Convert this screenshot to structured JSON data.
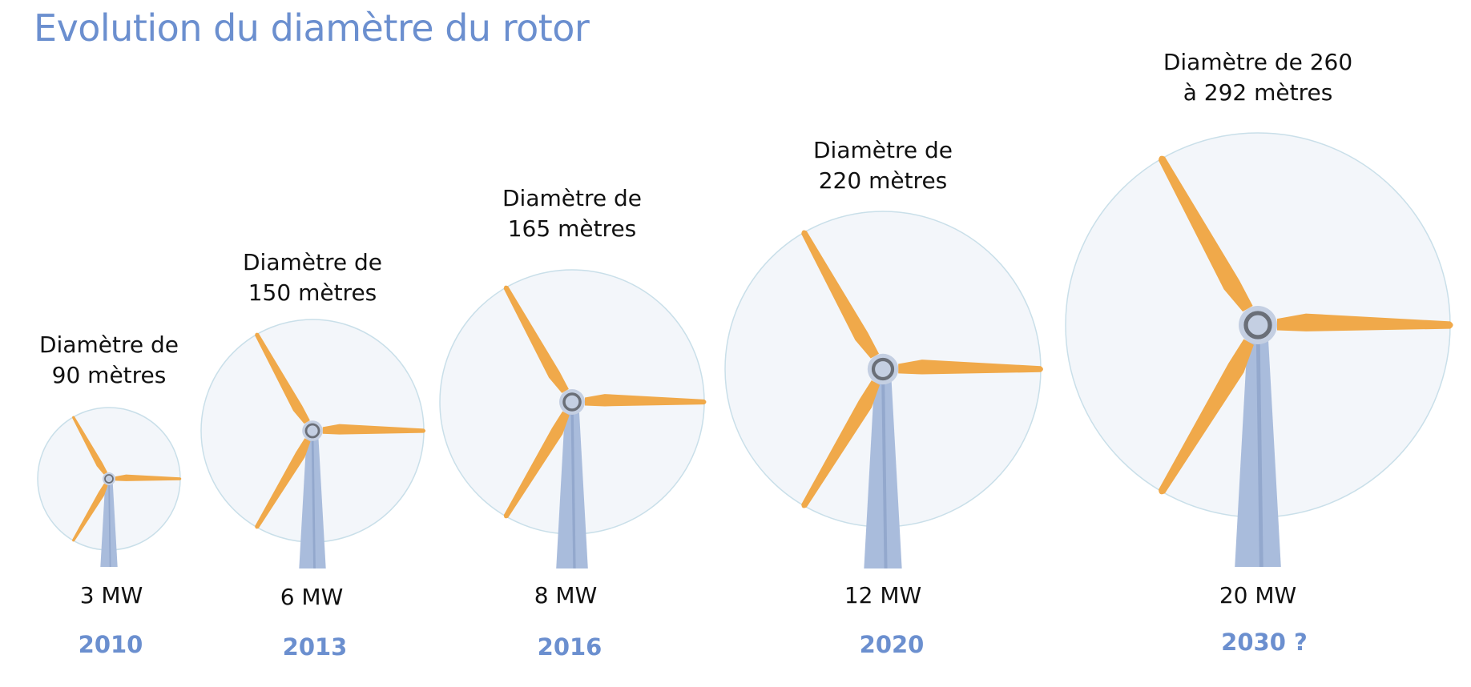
{
  "title": "Evolution du diamètre du rotor",
  "colors": {
    "title": "#6b8fcf",
    "year": "#6b8fcf",
    "blade": "#f0a94a",
    "rotor_disc_fill": "#f3f6fa",
    "rotor_disc_stroke": "#c9dfe9",
    "tower": "#a9bcdc",
    "hub": "#c4cfe2"
  },
  "turbines": [
    {
      "year": "2010",
      "power": "3 MW",
      "diameter_m": 90,
      "diameter_label_lines": [
        "Diamètre de",
        "90 mètres"
      ]
    },
    {
      "year": "2013",
      "power": "6 MW",
      "diameter_m": 150,
      "diameter_label_lines": [
        "Diamètre de",
        "150 mètres"
      ]
    },
    {
      "year": "2016",
      "power": "8 MW",
      "diameter_m": 165,
      "diameter_label_lines": [
        "Diamètre de",
        "165 mètres"
      ]
    },
    {
      "year": "2020",
      "power": "12 MW",
      "diameter_m": 220,
      "diameter_label_lines": [
        "Diamètre de",
        "220 mètres"
      ]
    },
    {
      "year": "2030 ?",
      "power": "20 MW",
      "diameter_m_range": [
        260,
        292
      ],
      "diameter_label_lines": [
        "Diamètre de 260",
        "à 292 mètres"
      ]
    }
  ]
}
